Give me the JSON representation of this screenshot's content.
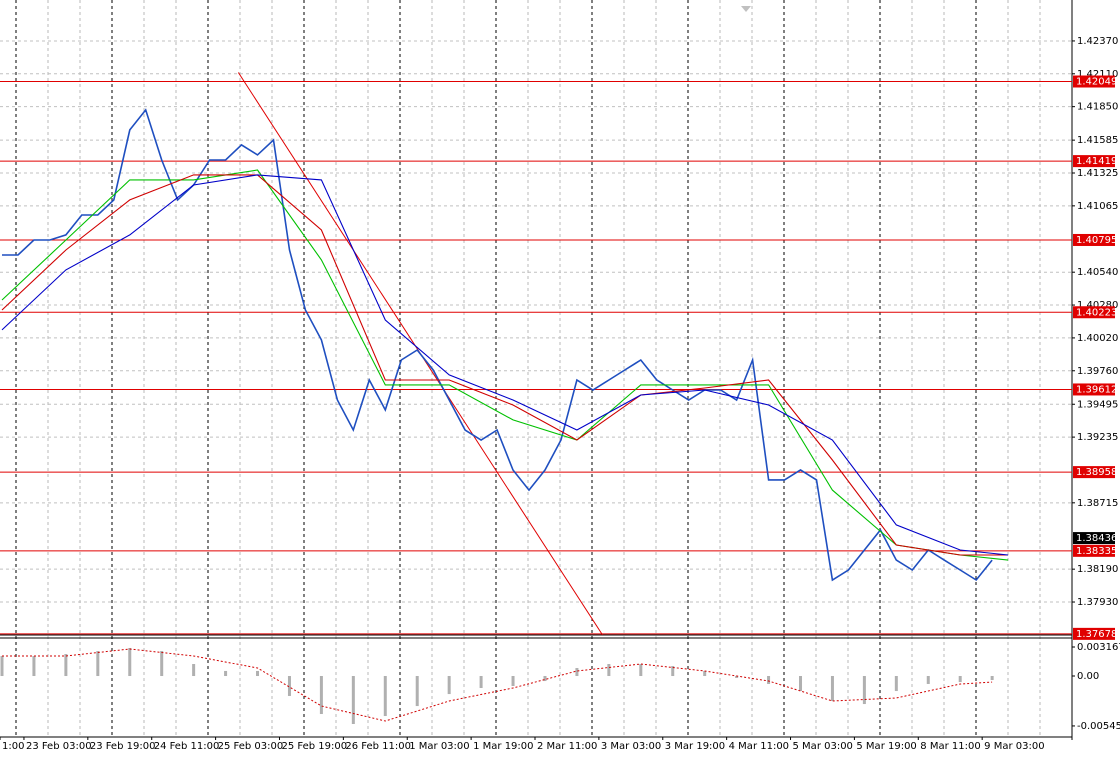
{
  "chart_data": {
    "type": "line",
    "xlim": [
      -0.125,
      67
    ],
    "ylim": [
      1.37669,
      1.42694
    ],
    "xticks": [
      {
        "value": -0.125,
        "label": "1:00"
      },
      {
        "value": 1.375,
        "label": "23 Feb 03:00"
      },
      {
        "value": 5.375,
        "label": "23 Feb 19:00"
      },
      {
        "value": 9.375,
        "label": "24 Feb 11:00"
      },
      {
        "value": 13.375,
        "label": "25 Feb 03:00"
      },
      {
        "value": 17.375,
        "label": "25 Feb 19:00"
      },
      {
        "value": 21.375,
        "label": "26 Feb 11:00"
      },
      {
        "value": 25.375,
        "label": "1 Mar 03:00"
      },
      {
        "value": 29.375,
        "label": "1 Mar 19:00"
      },
      {
        "value": 33.375,
        "label": "2 Mar 11:00"
      },
      {
        "value": 37.375,
        "label": "3 Mar 03:00"
      },
      {
        "value": 41.375,
        "label": "3 Mar 19:00"
      },
      {
        "value": 45.375,
        "label": "4 Mar 11:00"
      },
      {
        "value": 49.375,
        "label": "5 Mar 03:00"
      },
      {
        "value": 53.375,
        "label": "5 Mar 19:00"
      },
      {
        "value": 57.375,
        "label": "8 Mar 11:00"
      },
      {
        "value": 61.375,
        "label": "9 Mar 03:00"
      }
    ],
    "yticks": [
      {
        "value": 1.4237,
        "label": "1.42370"
      },
      {
        "value": 1.4211,
        "label": "1.42110"
      },
      {
        "value": 1.4185,
        "label": "1.41850"
      },
      1.41585,
      1.41325,
      1.41065,
      {
        "value": 1.4054,
        "label": "1.40540"
      },
      {
        "value": 1.4028,
        "label": "1.40280"
      },
      {
        "value": 1.4002,
        "label": "1.40020"
      },
      {
        "value": 1.3976,
        "label": "1.39760"
      },
      1.39495,
      1.39235,
      1.38715,
      {
        "value": 1.3819,
        "label": "1.38190"
      },
      {
        "value": 1.3793,
        "label": "1.37930"
      }
    ],
    "grid": true,
    "series": [
      {
        "color": "#1f4fc0",
        "x": [
          0,
          1,
          2,
          3,
          4,
          5,
          6,
          7,
          8,
          9,
          10,
          11,
          12,
          13,
          14,
          15,
          16,
          17,
          18,
          19,
          20,
          21,
          22,
          23,
          24,
          25,
          26,
          27,
          28,
          29,
          30,
          31,
          32,
          33,
          34,
          35,
          36,
          37,
          38,
          39,
          40,
          41,
          42,
          43,
          44,
          45,
          46,
          47,
          48,
          49,
          50,
          51,
          52,
          53,
          54,
          55,
          56,
          57,
          58,
          59,
          60,
          61,
          62
        ],
        "values": [
          1.40676,
          1.40676,
          1.40795,
          1.40795,
          1.40835,
          1.40993,
          1.40993,
          1.41112,
          1.41666,
          1.41824,
          1.41428,
          1.41112,
          1.4123,
          1.41428,
          1.41428,
          1.41547,
          1.41468,
          1.41586,
          1.40716,
          1.40241,
          1.40004,
          1.39529,
          1.39291,
          1.39687,
          1.3945,
          1.39845,
          1.39924,
          1.39766,
          1.39529,
          1.39291,
          1.39212,
          1.39291,
          1.38975,
          1.38816,
          1.38975,
          1.39212,
          1.39687,
          1.39608,
          1.39687,
          1.39766,
          1.39845,
          1.39687,
          1.39608,
          1.39529,
          1.39608,
          1.39608,
          1.39529,
          1.39845,
          1.38896,
          1.38896,
          1.38975,
          1.38896,
          1.38104,
          1.38183,
          1.38342,
          1.385,
          1.38262,
          1.38183,
          1.38342,
          1.38262,
          1.38183,
          1.38104,
          1.38262
        ]
      },
      {
        "color": "#00c000",
        "x": [
          0,
          4,
          8,
          12,
          16,
          20,
          24,
          28,
          32,
          36,
          40,
          44,
          48,
          52,
          56,
          60,
          63
        ],
        "values": [
          1.4032,
          1.40795,
          1.4127,
          1.4127,
          1.41349,
          1.40637,
          1.39648,
          1.39648,
          1.39371,
          1.39212,
          1.39648,
          1.39648,
          1.39648,
          1.38816,
          1.38381,
          1.38302,
          1.38262
        ]
      },
      {
        "color": "#d00000",
        "x": [
          0,
          4,
          8,
          12,
          16,
          20,
          24,
          28,
          32,
          36,
          40,
          44,
          48,
          52,
          56,
          60,
          63
        ],
        "values": [
          1.40241,
          1.40716,
          1.41112,
          1.4131,
          1.4131,
          1.40874,
          1.39687,
          1.39687,
          1.39489,
          1.39212,
          1.39568,
          1.39624,
          1.39687,
          1.39054,
          1.38381,
          1.38302,
          1.38302
        ]
      },
      {
        "color": "#0000c8",
        "x": [
          0,
          4,
          8,
          12,
          16,
          20,
          24,
          28,
          32,
          36,
          40,
          44,
          48,
          52,
          56,
          60,
          63
        ],
        "values": [
          1.40083,
          1.40558,
          1.40835,
          1.4123,
          1.4131,
          1.4127,
          1.40162,
          1.39727,
          1.39529,
          1.39291,
          1.39568,
          1.39608,
          1.39489,
          1.39212,
          1.3854,
          1.38342,
          1.38302
        ]
      }
    ],
    "levels": [
      {
        "value": 1.42049,
        "color": "#e00000"
      },
      {
        "value": 1.41419,
        "color": "#e00000"
      },
      {
        "value": 1.40795,
        "color": "#e00000"
      },
      {
        "value": 1.40223,
        "color": "#e00000"
      },
      {
        "value": 1.39612,
        "color": "#e00000"
      },
      {
        "value": 1.38958,
        "color": "#e00000"
      },
      {
        "value": 1.38335,
        "color": "#e00000"
      },
      {
        "value": 1.37678,
        "color": "#e00000"
      }
    ],
    "last_price": 1.38436,
    "trendline": {
      "x": [
        14.8,
        37.6
      ],
      "values": [
        1.4212,
        1.3767
      ],
      "color": "#e00000"
    },
    "indicator": {
      "ylim": [
        -0.00666,
        0.00415
      ],
      "yticks": [
        0.003167,
        {
          "value": 0,
          "label": "0.00"
        },
        -0.005453
      ],
      "histogram": {
        "color": "#b0b0b0",
        "x": [
          0,
          2,
          4,
          6,
          8,
          10,
          12,
          14,
          16,
          18,
          20,
          22,
          24,
          26,
          28,
          30,
          32,
          34,
          36,
          38,
          40,
          42,
          44,
          46,
          48,
          50,
          52,
          54,
          56,
          58,
          60,
          62
        ],
        "values": [
          0.00218,
          0.00218,
          0.0024,
          0.00273,
          0.00306,
          0.00273,
          0.00131,
          0.00055,
          0.00055,
          -0.00218,
          -0.00415,
          -0.00524,
          -0.00437,
          -0.00328,
          -0.00197,
          -0.00131,
          -0.00109,
          -0.00055,
          0.00087,
          0.00131,
          0.00131,
          0.00109,
          0.00055,
          -0.00022,
          -0.00087,
          -0.00164,
          -0.00273,
          -0.00306,
          -0.00164,
          -0.00087,
          -0.00066,
          -0.00044
        ]
      },
      "signal": {
        "color": "#d00000",
        "x": [
          0,
          4,
          8,
          12,
          16,
          20,
          24,
          28,
          32,
          36,
          40,
          44,
          48,
          52,
          56,
          60,
          62
        ],
        "values": [
          0.00218,
          0.00218,
          0.00295,
          0.00218,
          0.00087,
          -0.00328,
          -0.00491,
          -0.00273,
          -0.00131,
          0.00055,
          0.00131,
          0.00055,
          -0.00055,
          -0.00273,
          -0.0024,
          -0.00087,
          -0.00066
        ]
      }
    }
  }
}
